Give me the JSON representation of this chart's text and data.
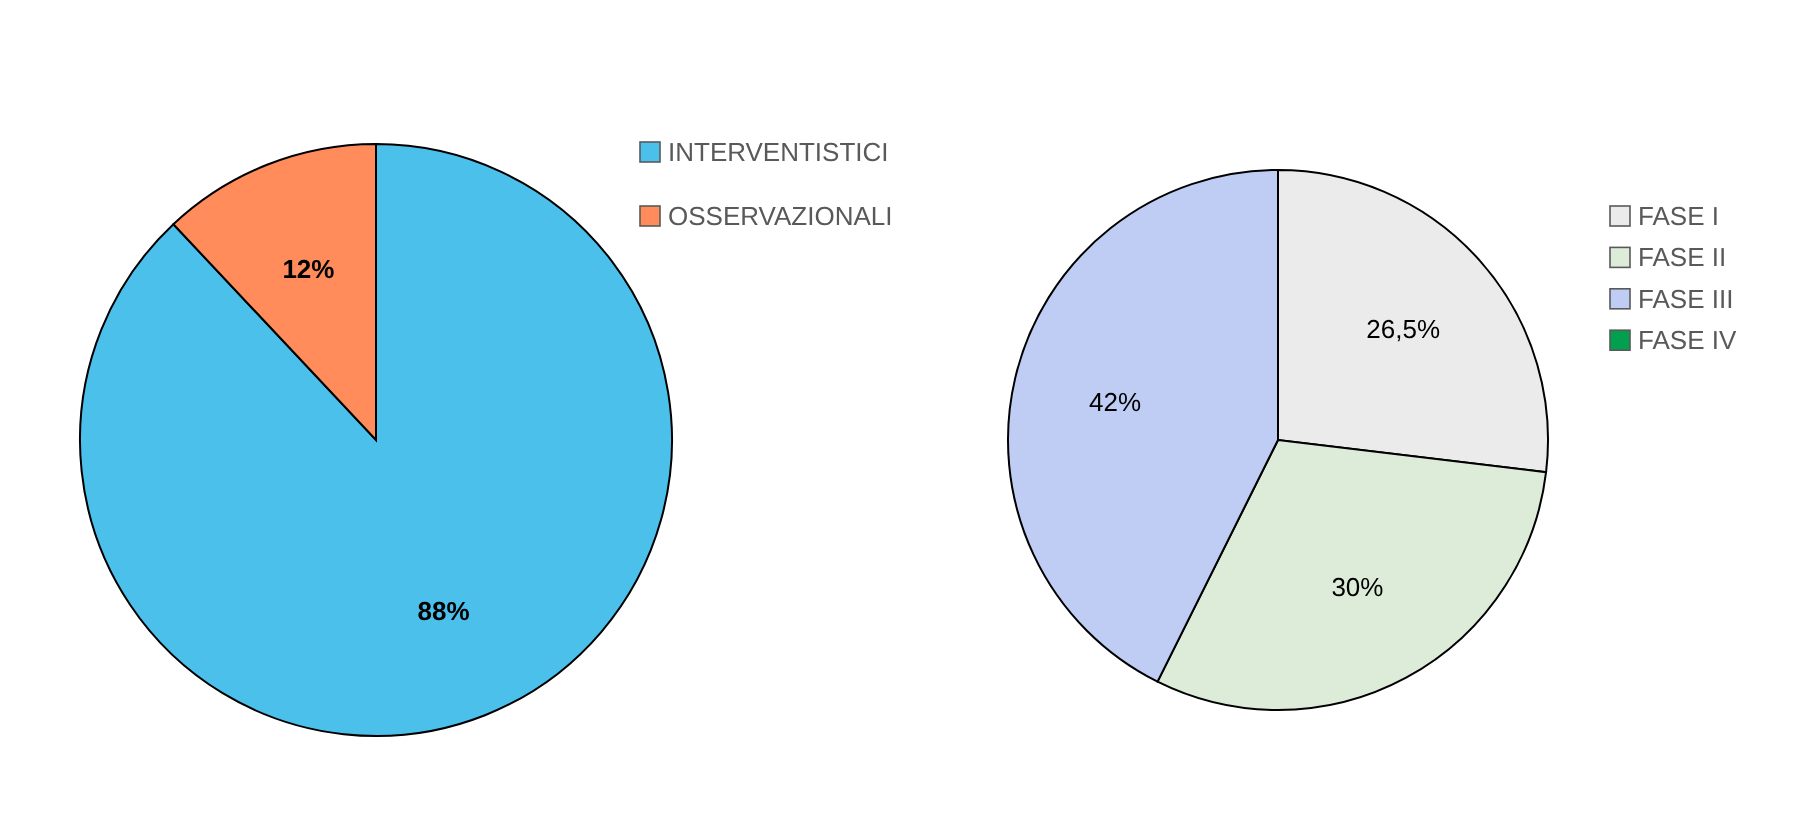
{
  "chart_data": [
    {
      "type": "pie",
      "categories": [
        "INTERVENTISTICI",
        "OSSERVAZIONALI"
      ],
      "values": [
        88,
        12
      ],
      "colors": [
        "#4bc0eb",
        "#ff8c5a"
      ],
      "value_labels": [
        "88%",
        "12%"
      ],
      "legend": "right"
    },
    {
      "type": "pie",
      "categories": [
        "FASE I",
        "FASE II",
        "FASE III",
        "FASE IV"
      ],
      "values": [
        26.5,
        30,
        42,
        0
      ],
      "colors": [
        "#ebebeb",
        "#dcecd8",
        "#bfcdf5",
        "#00a04e"
      ],
      "value_labels": [
        "26,5%",
        "30%",
        "42%",
        null
      ],
      "legend": "right"
    }
  ]
}
